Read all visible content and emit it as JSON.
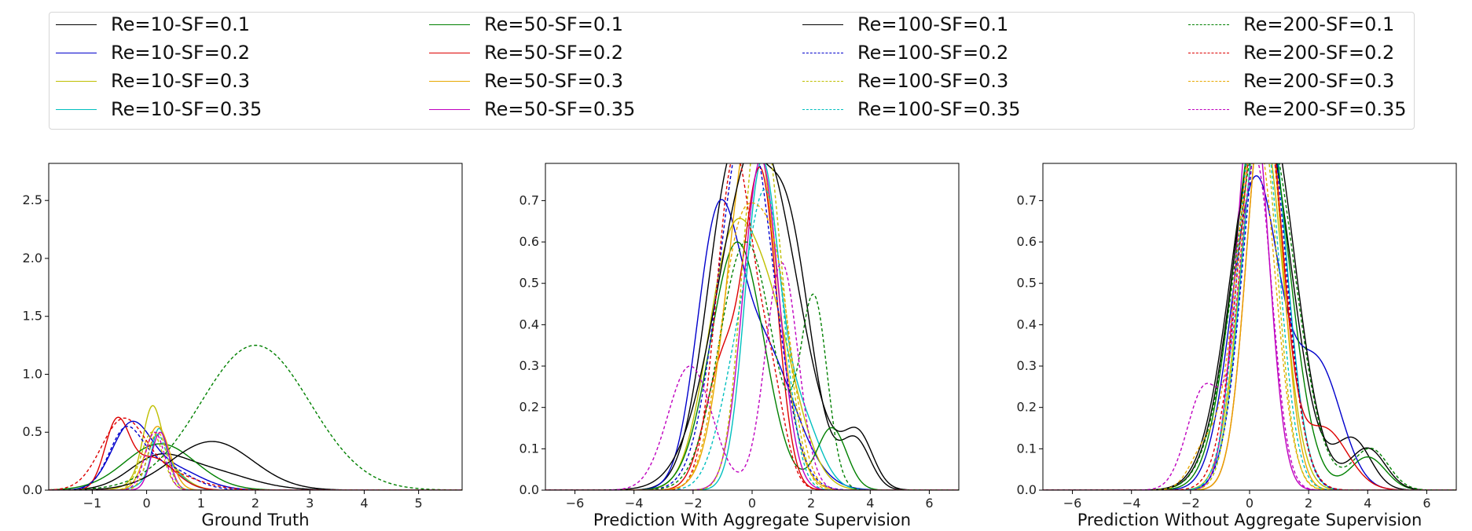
{
  "legend": [
    {
      "label": "Re=10-SF=0.1",
      "color": "#000000",
      "dash": false
    },
    {
      "label": "Re=10-SF=0.2",
      "color": "#0000cc",
      "dash": false
    },
    {
      "label": "Re=10-SF=0.3",
      "color": "#bfbf00",
      "dash": false
    },
    {
      "label": "Re=10-SF=0.35",
      "color": "#00bfbf",
      "dash": false
    },
    {
      "label": "Re=50-SF=0.1",
      "color": "#008000",
      "dash": false
    },
    {
      "label": "Re=50-SF=0.2",
      "color": "#dd0000",
      "dash": false
    },
    {
      "label": "Re=50-SF=0.3",
      "color": "#e8a800",
      "dash": false
    },
    {
      "label": "Re=50-SF=0.35",
      "color": "#bf00bf",
      "dash": false
    },
    {
      "label": "Re=100-SF=0.1",
      "color": "#000000",
      "dash": false
    },
    {
      "label": "Re=100-SF=0.2",
      "color": "#0000cc",
      "dash": true
    },
    {
      "label": "Re=100-SF=0.3",
      "color": "#bfbf00",
      "dash": true
    },
    {
      "label": "Re=100-SF=0.35",
      "color": "#00bfbf",
      "dash": true
    },
    {
      "label": "Re=200-SF=0.1",
      "color": "#008000",
      "dash": true
    },
    {
      "label": "Re=200-SF=0.2",
      "color": "#dd0000",
      "dash": true
    },
    {
      "label": "Re=200-SF=0.3",
      "color": "#e8a800",
      "dash": true
    },
    {
      "label": "Re=200-SF=0.35",
      "color": "#bf00bf",
      "dash": true
    }
  ],
  "chart_data": [
    {
      "type": "line",
      "xlabel": "Ground Truth",
      "ylabel": "",
      "xlim": [
        -1.8,
        5.8
      ],
      "ylim": [
        0,
        2.82
      ],
      "xticks": [
        -1,
        0,
        1,
        2,
        3,
        4,
        5
      ],
      "yticks": [
        0.0,
        0.5,
        1.0,
        1.5,
        2.0,
        2.5
      ],
      "ytick_labels": [
        "0.0",
        "0.5",
        "1.0",
        "1.5",
        "2.0",
        "2.5"
      ],
      "series": [
        {
          "name": "Re=10-SF=0.1",
          "components": [
            [
              0.15,
              0.5,
              0.2
            ],
            [
              1.0,
              0.8,
              0.18
            ]
          ]
        },
        {
          "name": "Re=10-SF=0.2",
          "components": [
            [
              -0.3,
              0.35,
              0.5
            ],
            [
              0.4,
              0.55,
              0.2
            ]
          ]
        },
        {
          "name": "Re=10-SF=0.3",
          "components": [
            [
              0.1,
              0.16,
              0.5
            ],
            [
              0.25,
              0.35,
              0.25
            ]
          ]
        },
        {
          "name": "Re=10-SF=0.35",
          "components": [
            [
              0.22,
              0.12,
              0.35
            ],
            [
              0.35,
              0.3,
              0.2
            ]
          ]
        },
        {
          "name": "Re=50-SF=0.1",
          "components": [
            [
              0.25,
              0.65,
              0.4
            ]
          ]
        },
        {
          "name": "Re=50-SF=0.2",
          "components": [
            [
              -0.55,
              0.22,
              0.55
            ],
            [
              0.1,
              0.4,
              0.28
            ]
          ]
        },
        {
          "name": "Re=50-SF=0.3",
          "components": [
            [
              0.2,
              0.22,
              0.55
            ]
          ]
        },
        {
          "name": "Re=50-SF=0.35",
          "components": [
            [
              0.25,
              0.16,
              0.5
            ]
          ]
        },
        {
          "name": "Re=100-SF=0.1",
          "components": [
            [
              1.2,
              0.75,
              0.42
            ]
          ]
        },
        {
          "name": "Re=100-SF=0.2",
          "components": [
            [
              -0.4,
              0.3,
              0.45
            ],
            [
              0.25,
              0.5,
              0.22
            ]
          ]
        },
        {
          "name": "Re=100-SF=0.3",
          "components": [
            [
              0.1,
              0.2,
              0.5
            ]
          ]
        },
        {
          "name": "Re=100-SF=0.35",
          "components": [
            [
              0.2,
              0.18,
              0.48
            ]
          ]
        },
        {
          "name": "Re=200-SF=0.1",
          "components": [
            [
              2.0,
              1.0,
              1.25
            ]
          ]
        },
        {
          "name": "Re=200-SF=0.2",
          "components": [
            [
              -0.45,
              0.4,
              0.55
            ],
            [
              0.3,
              0.6,
              0.15
            ]
          ]
        },
        {
          "name": "Re=200-SF=0.3",
          "components": [
            [
              0.2,
              0.18,
              0.5
            ]
          ]
        },
        {
          "name": "Re=200-SF=0.35",
          "components": [
            [
              0.15,
              0.18,
              0.5
            ]
          ]
        }
      ]
    },
    {
      "type": "line",
      "xlabel": "Prediction With Aggregate Supervision",
      "ylabel": "",
      "xlim": [
        -7,
        7
      ],
      "ylim": [
        0,
        0.79
      ],
      "xticks": [
        -6,
        -4,
        -2,
        0,
        2,
        4,
        6
      ],
      "yticks": [
        0.0,
        0.1,
        0.2,
        0.3,
        0.4,
        0.5,
        0.6,
        0.7
      ],
      "ytick_labels": [
        "0.0",
        "0.1",
        "0.2",
        "0.3",
        "0.4",
        "0.5",
        "0.6",
        "0.7"
      ],
      "series": [
        {
          "name": "Re=10-SF=0.1",
          "components": [
            [
              -0.6,
              0.9,
              0.8
            ],
            [
              1.2,
              0.8,
              0.6
            ],
            [
              3.5,
              0.5,
              0.12
            ]
          ]
        },
        {
          "name": "Re=10-SF=0.2",
          "components": [
            [
              -1.2,
              0.7,
              0.55
            ],
            [
              0.3,
              1.1,
              0.35
            ]
          ]
        },
        {
          "name": "Re=10-SF=0.3",
          "components": [
            [
              -0.8,
              0.8,
              0.5
            ],
            [
              0.6,
              0.9,
              0.4
            ]
          ]
        },
        {
          "name": "Re=10-SF=0.35",
          "components": [
            [
              0.3,
              0.55,
              0.75
            ],
            [
              1.5,
              0.7,
              0.2
            ]
          ]
        },
        {
          "name": "Re=50-SF=0.1",
          "components": [
            [
              -0.5,
              0.9,
              0.6
            ],
            [
              2.7,
              0.5,
              0.15
            ]
          ]
        },
        {
          "name": "Re=50-SF=0.2",
          "components": [
            [
              0.3,
              0.55,
              0.75
            ],
            [
              -1.0,
              0.6,
              0.3
            ]
          ]
        },
        {
          "name": "Re=50-SF=0.3",
          "components": [
            [
              0.0,
              0.8,
              0.9
            ]
          ]
        },
        {
          "name": "Re=50-SF=0.35",
          "components": [
            [
              0.3,
              0.6,
              0.8
            ]
          ]
        },
        {
          "name": "Re=100-SF=0.1",
          "components": [
            [
              0.2,
              1.3,
              0.85
            ],
            [
              3.6,
              0.5,
              0.12
            ]
          ]
        },
        {
          "name": "Re=100-SF=0.2",
          "components": [
            [
              -0.2,
              0.9,
              0.9
            ]
          ]
        },
        {
          "name": "Re=100-SF=0.3",
          "components": [
            [
              0.2,
              0.55,
              0.85
            ],
            [
              1.0,
              0.5,
              0.25
            ]
          ]
        },
        {
          "name": "Re=100-SF=0.35",
          "components": [
            [
              0.6,
              0.55,
              0.55
            ],
            [
              -0.3,
              0.7,
              0.35
            ]
          ]
        },
        {
          "name": "Re=200-SF=0.1",
          "components": [
            [
              -0.2,
              0.9,
              0.6
            ],
            [
              2.1,
              0.45,
              0.45
            ]
          ]
        },
        {
          "name": "Re=200-SF=0.2",
          "components": [
            [
              -0.6,
              0.6,
              0.8
            ],
            [
              0.6,
              0.5,
              0.25
            ]
          ]
        },
        {
          "name": "Re=200-SF=0.3",
          "components": [
            [
              -0.4,
              0.7,
              0.6
            ],
            [
              0.8,
              0.6,
              0.45
            ]
          ]
        },
        {
          "name": "Re=200-SF=0.35",
          "components": [
            [
              -2.1,
              0.75,
              0.3
            ],
            [
              1.0,
              0.55,
              0.55
            ]
          ]
        }
      ]
    },
    {
      "type": "line",
      "xlabel": "Prediction Without Aggregate Supervision",
      "ylabel": "",
      "xlim": [
        -7,
        7
      ],
      "ylim": [
        0,
        0.79
      ],
      "xticks": [
        -6,
        -4,
        -2,
        0,
        2,
        4,
        6
      ],
      "yticks": [
        0.0,
        0.1,
        0.2,
        0.3,
        0.4,
        0.5,
        0.6,
        0.7
      ],
      "ytick_labels": [
        "0.0",
        "0.1",
        "0.2",
        "0.3",
        "0.4",
        "0.5",
        "0.6",
        "0.7"
      ],
      "series": [
        {
          "name": "Re=10-SF=0.1",
          "components": [
            [
              0.4,
              1.0,
              0.9
            ],
            [
              3.5,
              0.6,
              0.12
            ]
          ]
        },
        {
          "name": "Re=10-SF=0.2",
          "components": [
            [
              0.2,
              0.8,
              0.75
            ],
            [
              2.3,
              0.8,
              0.3
            ]
          ]
        },
        {
          "name": "Re=10-SF=0.3",
          "components": [
            [
              0.4,
              0.7,
              0.9
            ]
          ]
        },
        {
          "name": "Re=10-SF=0.35",
          "components": [
            [
              0.5,
              0.7,
              1.0
            ]
          ]
        },
        {
          "name": "Re=50-SF=0.1",
          "components": [
            [
              0.4,
              0.9,
              0.95
            ],
            [
              4.0,
              0.6,
              0.08
            ]
          ]
        },
        {
          "name": "Re=50-SF=0.2",
          "components": [
            [
              0.5,
              0.6,
              0.95
            ],
            [
              2.5,
              0.8,
              0.15
            ]
          ]
        },
        {
          "name": "Re=50-SF=0.3",
          "components": [
            [
              0.5,
              0.6,
              0.95
            ]
          ]
        },
        {
          "name": "Re=50-SF=0.35",
          "components": [
            [
              0.1,
              0.55,
              0.95
            ]
          ]
        },
        {
          "name": "Re=100-SF=0.1",
          "components": [
            [
              0.5,
              1.0,
              0.95
            ],
            [
              4.0,
              0.6,
              0.1
            ]
          ]
        },
        {
          "name": "Re=100-SF=0.2",
          "components": [
            [
              0.5,
              0.7,
              0.95
            ]
          ]
        },
        {
          "name": "Re=100-SF=0.3",
          "components": [
            [
              0.3,
              0.6,
              0.95
            ]
          ]
        },
        {
          "name": "Re=100-SF=0.35",
          "components": [
            [
              0.3,
              0.65,
              0.98
            ]
          ]
        },
        {
          "name": "Re=200-SF=0.1",
          "components": [
            [
              0.5,
              1.0,
              0.9
            ],
            [
              4.1,
              0.6,
              0.1
            ]
          ]
        },
        {
          "name": "Re=200-SF=0.2",
          "components": [
            [
              0.4,
              0.75,
              0.95
            ]
          ]
        },
        {
          "name": "Re=200-SF=0.3",
          "components": [
            [
              0.2,
              0.65,
              0.88
            ],
            [
              -1.5,
              0.5,
              0.1
            ]
          ]
        },
        {
          "name": "Re=200-SF=0.35",
          "components": [
            [
              0.2,
              0.55,
              0.8
            ],
            [
              -1.5,
              0.6,
              0.25
            ]
          ]
        }
      ]
    }
  ]
}
